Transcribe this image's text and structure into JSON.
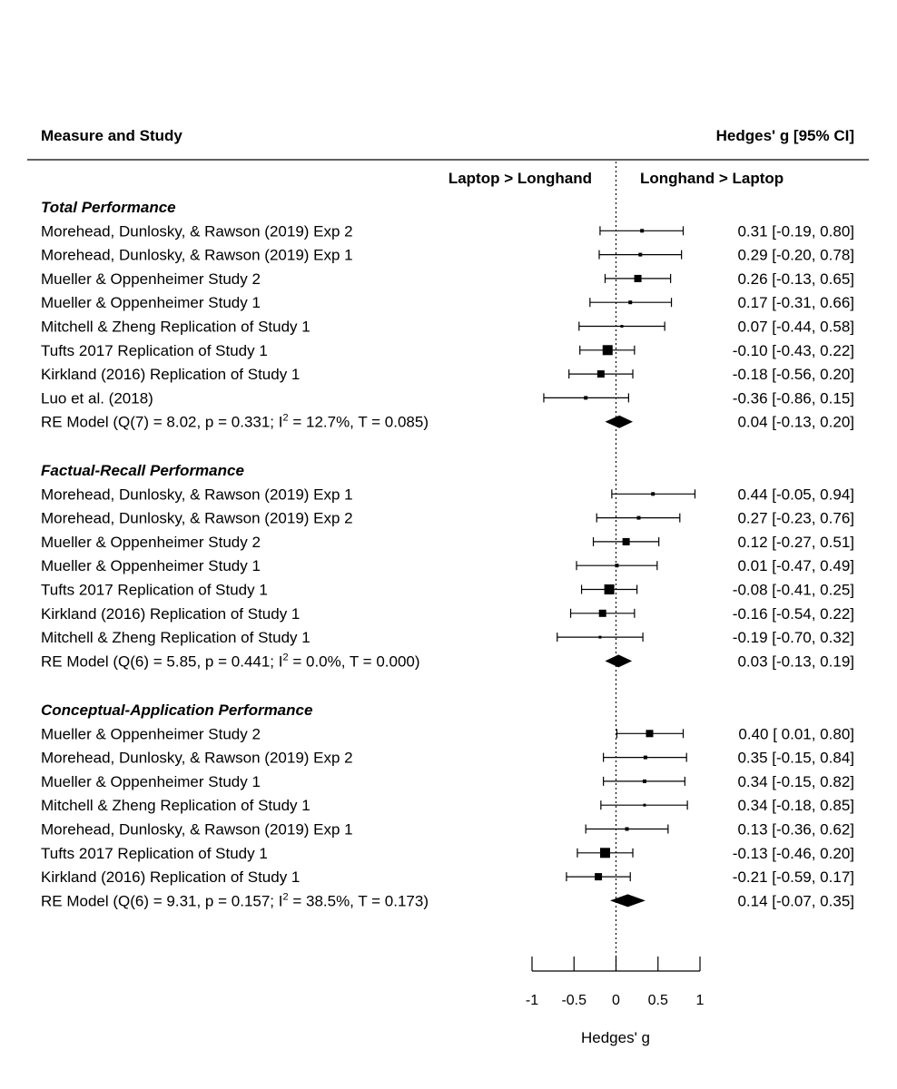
{
  "chart_data": {
    "type": "forest",
    "header": {
      "left": "Measure and Study",
      "right": "Hedges' g [95% CI]",
      "direction_left": "Laptop > Longhand",
      "direction_right": "Longhand > Laptop"
    },
    "xlabel": "Hedges' g",
    "xlim": [
      -1,
      1
    ],
    "xticks": [
      -1,
      -0.5,
      0,
      0.5,
      1
    ],
    "xtick_labels": [
      "-1",
      "-0.5",
      "0",
      "0.5",
      "1"
    ],
    "reference_line": 0,
    "groups": [
      {
        "title": "Total Performance",
        "studies": [
          {
            "label": "Morehead, Dunlosky, & Rawson (2019) Exp 2",
            "g": 0.31,
            "lo": -0.19,
            "hi": 0.8,
            "text": "0.31 [-0.19, 0.80]",
            "weight": 1
          },
          {
            "label": "Morehead, Dunlosky, & Rawson (2019) Exp 1",
            "g": 0.29,
            "lo": -0.2,
            "hi": 0.78,
            "text": "0.29 [-0.20, 0.78]",
            "weight": 1
          },
          {
            "label": "Mueller & Oppenheimer Study 2",
            "g": 0.26,
            "lo": -0.13,
            "hi": 0.65,
            "text": "0.26 [-0.13, 0.65]",
            "weight": 2
          },
          {
            "label": "Mueller & Oppenheimer Study 1",
            "g": 0.17,
            "lo": -0.31,
            "hi": 0.66,
            "text": "0.17 [-0.31, 0.66]",
            "weight": 1
          },
          {
            "label": "Mitchell & Zheng Replication of Study 1",
            "g": 0.07,
            "lo": -0.44,
            "hi": 0.58,
            "text": "0.07 [-0.44, 0.58]",
            "weight": 0.5
          },
          {
            "label": "Tufts 2017 Replication of Study 1",
            "g": -0.1,
            "lo": -0.43,
            "hi": 0.22,
            "text": "-0.10 [-0.43, 0.22]",
            "weight": 3
          },
          {
            "label": "Kirkland (2016) Replication of Study 1",
            "g": -0.18,
            "lo": -0.56,
            "hi": 0.2,
            "text": "-0.18 [-0.56, 0.20]",
            "weight": 2
          },
          {
            "label": "Luo et al. (2018)",
            "g": -0.36,
            "lo": -0.86,
            "hi": 0.15,
            "text": "-0.36 [-0.86, 0.15]",
            "weight": 1
          }
        ],
        "model": {
          "label_pre": "RE Model (Q(7) = 8.02, p = 0.331; I",
          "label_sup": "2",
          "label_post": " = 12.7%, T = 0.085)",
          "g": 0.04,
          "lo": -0.13,
          "hi": 0.2,
          "text": "0.04 [-0.13, 0.20]"
        }
      },
      {
        "title": "Factual-Recall Performance",
        "studies": [
          {
            "label": "Morehead, Dunlosky, & Rawson (2019) Exp 1",
            "g": 0.44,
            "lo": -0.05,
            "hi": 0.94,
            "text": "0.44 [-0.05, 0.94]",
            "weight": 1
          },
          {
            "label": "Morehead, Dunlosky, & Rawson (2019) Exp 2",
            "g": 0.27,
            "lo": -0.23,
            "hi": 0.76,
            "text": "0.27 [-0.23, 0.76]",
            "weight": 1
          },
          {
            "label": "Mueller & Oppenheimer Study 2",
            "g": 0.12,
            "lo": -0.27,
            "hi": 0.51,
            "text": "0.12 [-0.27, 0.51]",
            "weight": 2
          },
          {
            "label": "Mueller & Oppenheimer Study 1",
            "g": 0.01,
            "lo": -0.47,
            "hi": 0.49,
            "text": "0.01 [-0.47, 0.49]",
            "weight": 1
          },
          {
            "label": "Tufts 2017 Replication of Study 1",
            "g": -0.08,
            "lo": -0.41,
            "hi": 0.25,
            "text": "-0.08 [-0.41, 0.25]",
            "weight": 3
          },
          {
            "label": "Kirkland (2016) Replication of Study 1",
            "g": -0.16,
            "lo": -0.54,
            "hi": 0.22,
            "text": "-0.16 [-0.54, 0.22]",
            "weight": 2
          },
          {
            "label": "Mitchell & Zheng Replication of Study 1",
            "g": -0.19,
            "lo": -0.7,
            "hi": 0.32,
            "text": "-0.19 [-0.70, 0.32]",
            "weight": 0.5
          }
        ],
        "model": {
          "label_pre": "RE Model (Q(6) = 5.85, p = 0.441; I",
          "label_sup": "2",
          "label_post": " = 0.0%, T = 0.000)",
          "g": 0.03,
          "lo": -0.13,
          "hi": 0.19,
          "text": "0.03 [-0.13, 0.19]"
        }
      },
      {
        "title": "Conceptual-Application Performance",
        "studies": [
          {
            "label": "Mueller & Oppenheimer Study 2",
            "g": 0.4,
            "lo": 0.01,
            "hi": 0.8,
            "text": "0.40 [ 0.01, 0.80]",
            "weight": 2
          },
          {
            "label": "Morehead, Dunlosky, & Rawson (2019) Exp 2",
            "g": 0.35,
            "lo": -0.15,
            "hi": 0.84,
            "text": "0.35 [-0.15, 0.84]",
            "weight": 1
          },
          {
            "label": "Mueller & Oppenheimer Study 1",
            "g": 0.34,
            "lo": -0.15,
            "hi": 0.82,
            "text": "0.34 [-0.15, 0.82]",
            "weight": 1
          },
          {
            "label": "Mitchell & Zheng Replication of Study 1",
            "g": 0.34,
            "lo": -0.18,
            "hi": 0.85,
            "text": "0.34 [-0.18, 0.85]",
            "weight": 0.5
          },
          {
            "label": "Morehead, Dunlosky, & Rawson (2019) Exp 1",
            "g": 0.13,
            "lo": -0.36,
            "hi": 0.62,
            "text": "0.13 [-0.36, 0.62]",
            "weight": 1
          },
          {
            "label": "Tufts 2017 Replication of Study 1",
            "g": -0.13,
            "lo": -0.46,
            "hi": 0.2,
            "text": "-0.13 [-0.46, 0.20]",
            "weight": 3
          },
          {
            "label": "Kirkland (2016) Replication of Study 1",
            "g": -0.21,
            "lo": -0.59,
            "hi": 0.17,
            "text": "-0.21 [-0.59, 0.17]",
            "weight": 2
          }
        ],
        "model": {
          "label_pre": "RE Model (Q(6) = 9.31, p = 0.157; I",
          "label_sup": "2",
          "label_post": " = 38.5%, T = 0.173)",
          "g": 0.14,
          "lo": -0.07,
          "hi": 0.35,
          "text": "0.14 [-0.07, 0.35]"
        }
      }
    ]
  }
}
